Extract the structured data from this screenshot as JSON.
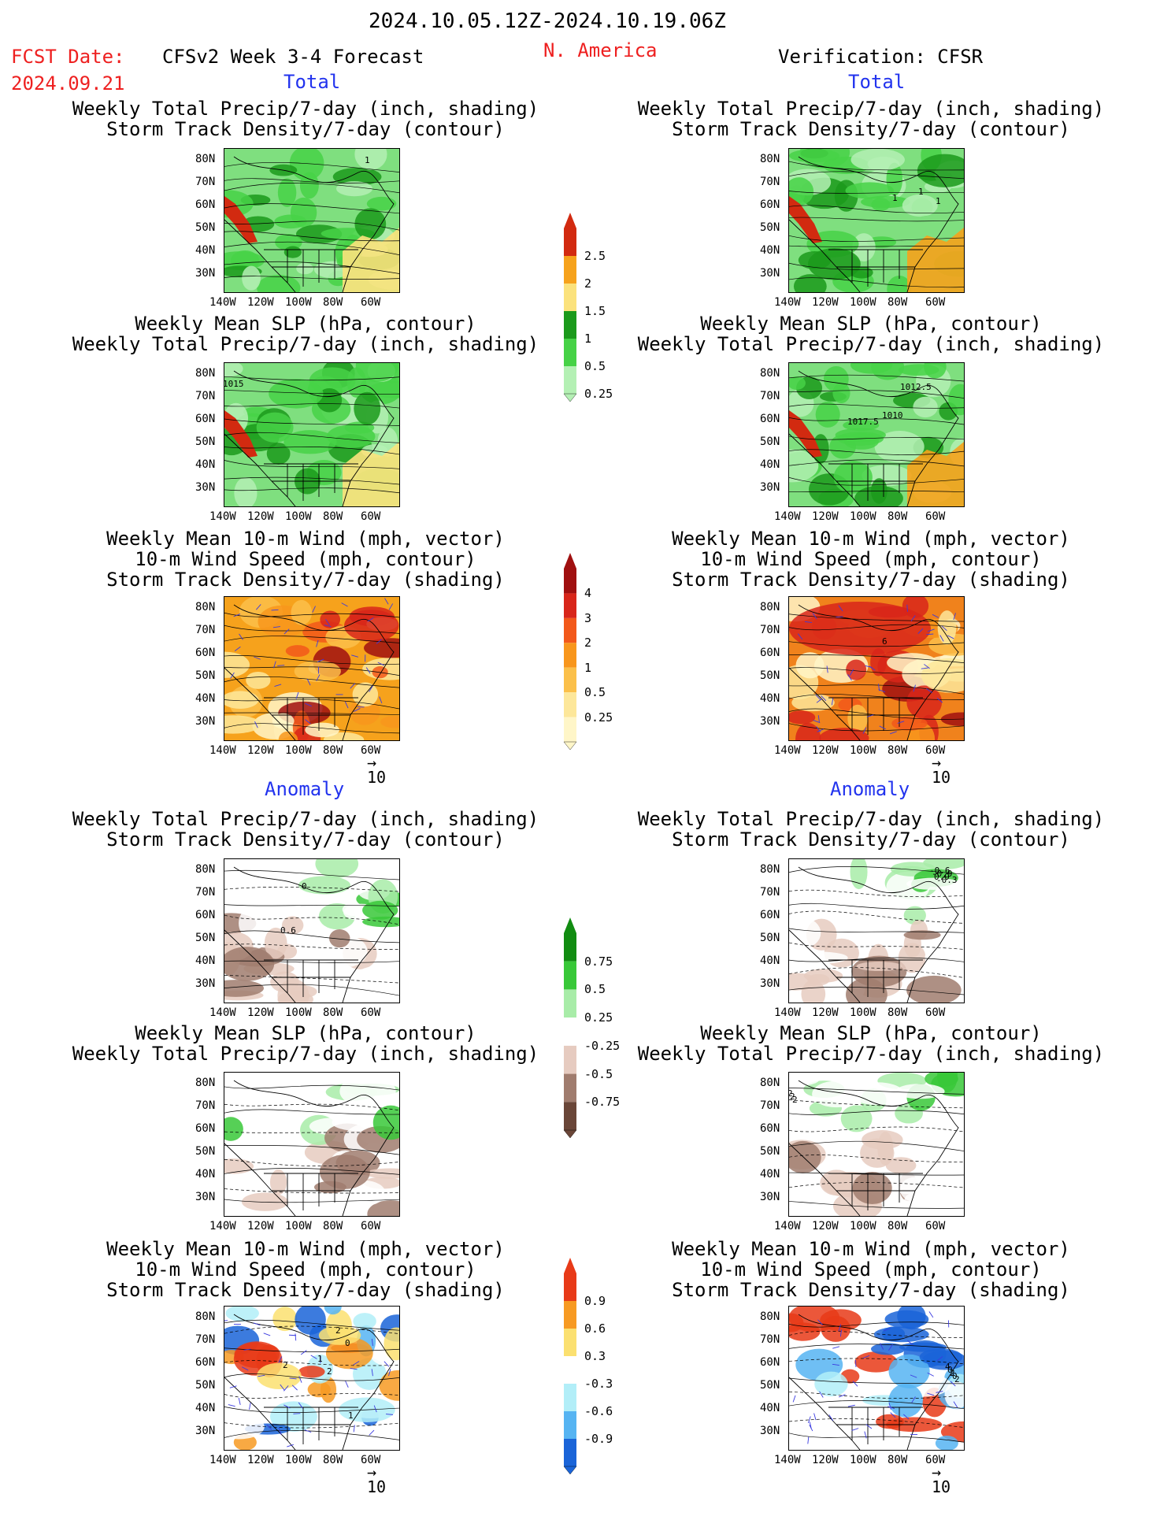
{
  "header": {
    "date_range": "2024.10.05.12Z-2024.10.19.06Z",
    "fcst_date_label": "FCST Date:",
    "fcst_date": "2024.09.21",
    "forecast_name": "CFSv2 Week 3-4 Forecast",
    "region": "N. America",
    "verification": "Verification: CFSR"
  },
  "sections": {
    "total": "Total",
    "anomaly": "Anomaly"
  },
  "panel_titles": {
    "precip_storm": [
      "Weekly Total Precip/7-day (inch, shading)",
      "Storm Track Density/7-day (contour)"
    ],
    "slp_precip": [
      "Weekly Mean SLP (hPa, contour)",
      "Weekly Total Precip/7-day (inch, shading)"
    ],
    "wind_storm": [
      "Weekly Mean 10-m Wind (mph, vector)",
      "10-m Wind Speed (mph, contour)",
      "Storm Track Density/7-day (shading)"
    ]
  },
  "axes": {
    "lat": [
      "80N",
      "70N",
      "60N",
      "50N",
      "40N",
      "30N"
    ],
    "lon": [
      "140W",
      "120W",
      "100W",
      "80W",
      "60W"
    ]
  },
  "vector_ref": "10",
  "contour_labels": {
    "l_precip_total": [
      "1"
    ],
    "r_precip_total": [
      "1",
      "1",
      "1"
    ],
    "l_slp_total": [
      "1015"
    ],
    "r_slp_total": [
      "1010",
      "1012.5",
      "1017.5"
    ],
    "r_wind_total": [
      "6"
    ],
    "l_precip_anom": [
      "0",
      "0.6"
    ],
    "r_precip_anom": [
      "-0.6",
      "-0.9",
      "0.9",
      "-0.3"
    ],
    "l_wind_anom": [
      "1",
      "2",
      "2",
      "1",
      "2",
      "0"
    ],
    "r_wind_anom": [
      "4",
      "0",
      "2",
      "0",
      "2"
    ],
    "r_slp_anom": [
      "2",
      "2",
      "2"
    ]
  },
  "colorbars": {
    "precip_total": {
      "labels": [
        "2.5",
        "2",
        "1.5",
        "1",
        "0.5",
        "0.25"
      ],
      "colors": [
        "#d22a10",
        "#f6a21c",
        "#fbe27c",
        "#1b9a1b",
        "#46d246",
        "#b4f0b4"
      ]
    },
    "storm_total": {
      "labels": [
        "4",
        "3",
        "2",
        "1",
        "0.5",
        "0.25"
      ],
      "colors": [
        "#a01010",
        "#d8261a",
        "#f2581a",
        "#f8961c",
        "#fbc04a",
        "#fde79a",
        "#fff6c8"
      ]
    },
    "precip_anom": {
      "labels": [
        "0.75",
        "0.5",
        "0.25",
        "-0.25",
        "-0.5",
        "-0.75"
      ],
      "colors": [
        "#118c11",
        "#38c838",
        "#a8eca8",
        "#ffffff",
        "#e6cbc0",
        "#a07c6e",
        "#6a4638"
      ]
    },
    "storm_anom": {
      "labels": [
        "0.9",
        "0.6",
        "0.3",
        "-0.3",
        "-0.6",
        "-0.9"
      ],
      "colors": [
        "#e83a18",
        "#f79a22",
        "#fbe070",
        "#ffffff",
        "#b2eef8",
        "#56b4f2",
        "#1a64d8"
      ]
    }
  },
  "colors": {
    "red_text": "#ee2020",
    "blue_text": "#2233ee"
  }
}
